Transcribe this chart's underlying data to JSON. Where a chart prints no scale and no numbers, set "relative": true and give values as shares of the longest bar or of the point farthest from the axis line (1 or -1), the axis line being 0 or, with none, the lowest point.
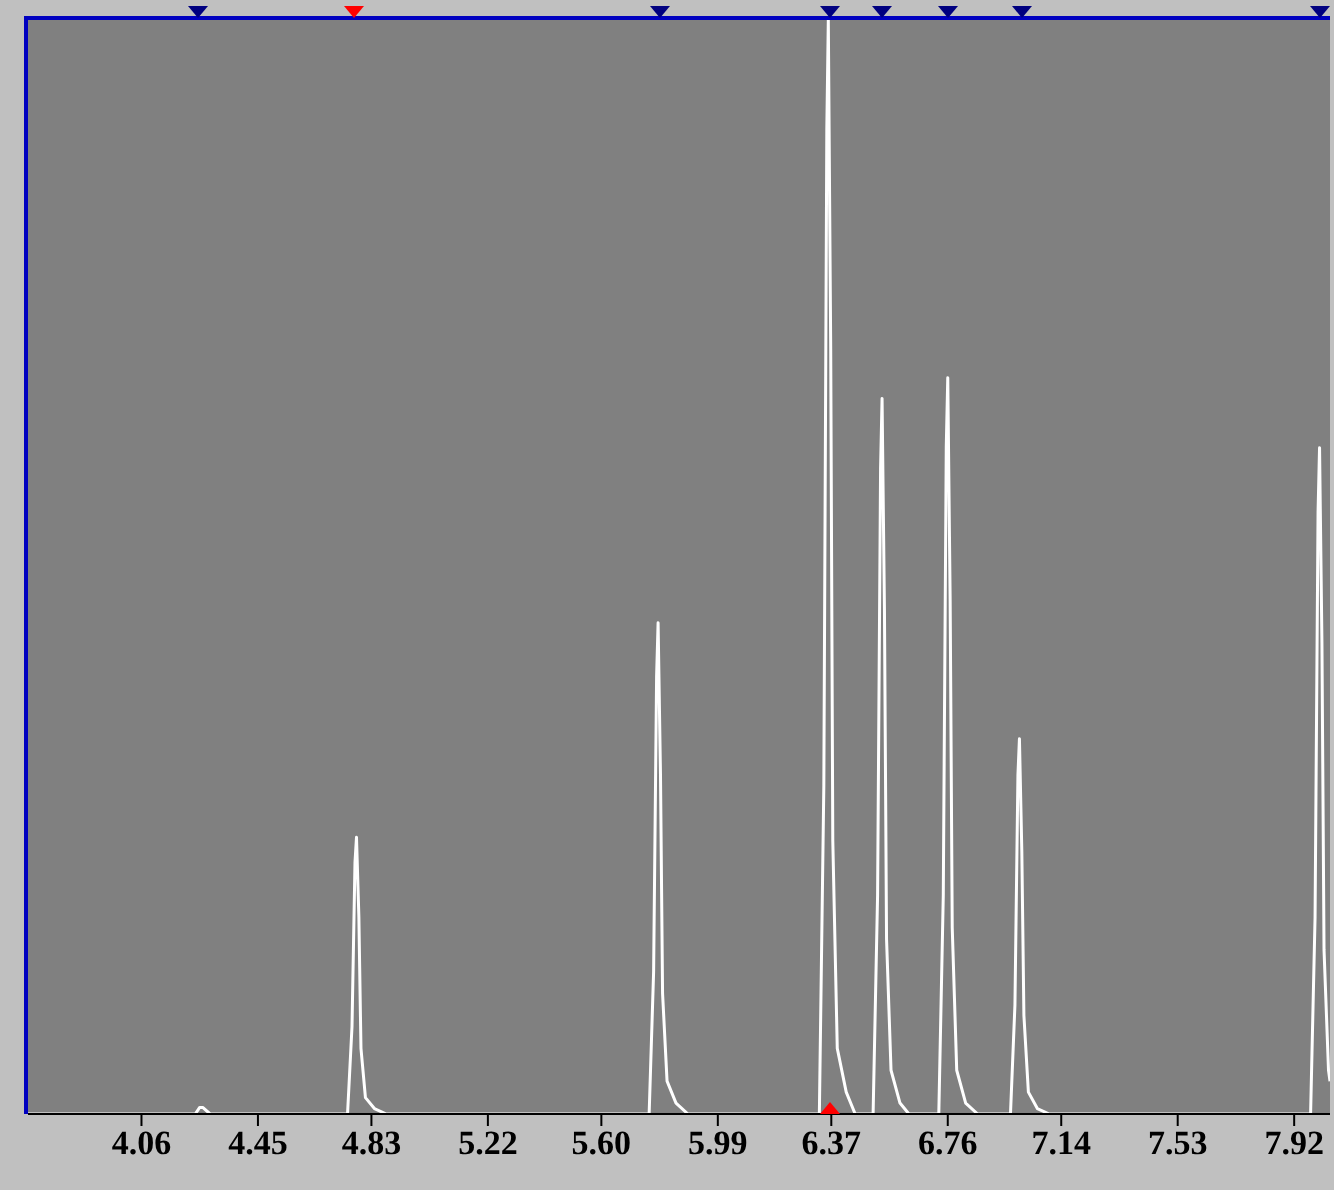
{
  "chart_data": {
    "type": "line",
    "relative": true,
    "tick_labels": "x",
    "marker": "none",
    "line_style": "solid",
    "xlim": [
      3.68,
      8.04
    ],
    "xticks": [
      4.06,
      4.45,
      4.83,
      5.22,
      {
        "value": 5.6,
        "label": "5.60"
      },
      5.99,
      6.37,
      6.76,
      7.14,
      7.53,
      7.92
    ],
    "series": [
      {
        "color": "#ffffff",
        "x": [
          3.68,
          4.24,
          4.255,
          4.265,
          4.29,
          4.75,
          4.765,
          4.775,
          4.78,
          4.788,
          4.795,
          4.81,
          4.84,
          4.88,
          5.76,
          5.775,
          5.785,
          5.79,
          5.798,
          5.805,
          5.82,
          5.85,
          5.89,
          6.33,
          6.345,
          6.355,
          6.36,
          6.368,
          6.375,
          6.39,
          6.42,
          6.45,
          6.51,
          6.525,
          6.535,
          6.54,
          6.548,
          6.555,
          6.57,
          6.6,
          6.63,
          6.73,
          6.745,
          6.755,
          6.76,
          6.768,
          6.775,
          6.79,
          6.82,
          6.86,
          6.97,
          6.985,
          6.995,
          7.0,
          7.008,
          7.015,
          7.03,
          7.06,
          7.1,
          7.975,
          7.99,
          8.0,
          8.005,
          8.013,
          8.02,
          8.035,
          8.04
        ],
        "values": [
          0,
          0,
          0.006,
          0.006,
          0,
          0,
          0.08,
          0.23,
          0.253,
          0.18,
          0.06,
          0.015,
          0.005,
          0,
          0,
          0.13,
          0.4,
          0.449,
          0.31,
          0.11,
          0.03,
          0.01,
          0,
          0,
          0.3,
          0.9,
          1,
          0.7,
          0.25,
          0.06,
          0.02,
          0,
          0,
          0.2,
          0.59,
          0.654,
          0.46,
          0.16,
          0.04,
          0.01,
          0,
          0,
          0.2,
          0.61,
          0.673,
          0.47,
          0.17,
          0.04,
          0.01,
          0,
          0,
          0.1,
          0.31,
          0.343,
          0.24,
          0.09,
          0.02,
          0.005,
          0,
          0,
          0.18,
          0.55,
          0.609,
          0.43,
          0.15,
          0.04,
          0.03
        ]
      }
    ]
  }
}
